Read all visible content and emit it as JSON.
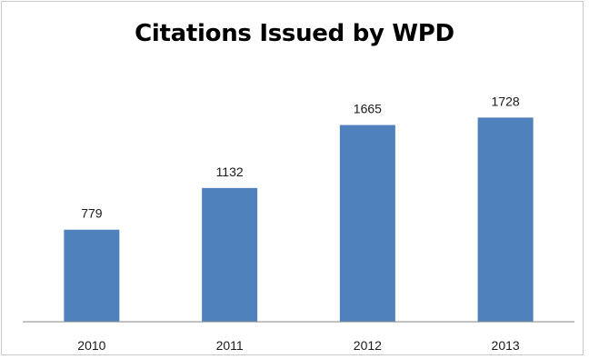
{
  "chart_data": {
    "type": "bar",
    "title": "Citations Issued by WPD",
    "categories": [
      "2010",
      "2011",
      "2012",
      "2013"
    ],
    "values": [
      779,
      1132,
      1665,
      1728
    ],
    "data_labels": [
      "779",
      "1132",
      "1665",
      "1728"
    ],
    "xlabel": "",
    "ylabel": "",
    "ylim": [
      0,
      2000
    ],
    "grid": false,
    "legend": "none",
    "bar_color": "#4F81BD",
    "axis_color": "#868686"
  }
}
